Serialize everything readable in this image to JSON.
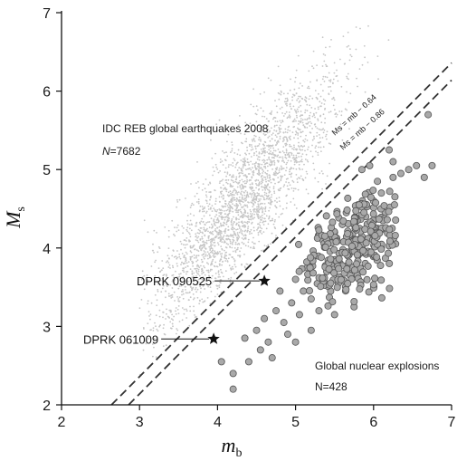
{
  "chart_data": {
    "type": "scatter",
    "xlabel_main": "m",
    "xlabel_sub": "b",
    "ylabel_main": "M",
    "ylabel_sub": "s",
    "xlim": [
      2,
      7
    ],
    "ylim": [
      2,
      7
    ],
    "xticks": [
      "2",
      "3",
      "4",
      "5",
      "6",
      "7"
    ],
    "yticks": [
      "2",
      "3",
      "4",
      "5",
      "6",
      "7"
    ],
    "grid": false,
    "series": [
      {
        "name": "IDC REB global earthquakes 2008",
        "count_label": "N=7682",
        "marker": "small light grey dot",
        "color": "#c6c6c6",
        "cloud": {
          "x_center": 4.3,
          "y_center": 4.55,
          "trend_slope": 1.15,
          "x_range": [
            3.3,
            6.2
          ]
        }
      },
      {
        "name": "Global nuclear explosions",
        "count_label": "N=428",
        "marker": "grey filled circle",
        "color": "#a9a9a9",
        "edge_color": "#555555",
        "points": [
          [
            4.05,
            2.55
          ],
          [
            4.2,
            2.4
          ],
          [
            4.2,
            2.2
          ],
          [
            4.35,
            2.85
          ],
          [
            4.4,
            2.55
          ],
          [
            4.5,
            2.95
          ],
          [
            4.55,
            2.7
          ],
          [
            4.6,
            3.1
          ],
          [
            4.65,
            2.8
          ],
          [
            4.75,
            3.2
          ],
          [
            4.8,
            3.45
          ],
          [
            4.85,
            3.05
          ],
          [
            4.9,
            2.9
          ],
          [
            4.95,
            3.3
          ],
          [
            5.0,
            3.6
          ],
          [
            5.05,
            3.15
          ],
          [
            5.1,
            3.45
          ],
          [
            5.15,
            3.75
          ],
          [
            5.2,
            3.35
          ],
          [
            5.25,
            3.9
          ],
          [
            5.3,
            3.55
          ],
          [
            5.3,
            3.2
          ],
          [
            5.35,
            4.1
          ],
          [
            5.4,
            3.7
          ],
          [
            5.45,
            3.45
          ],
          [
            5.5,
            4.2
          ],
          [
            5.5,
            3.85
          ],
          [
            5.55,
            3.55
          ],
          [
            5.6,
            4.3
          ],
          [
            5.6,
            3.95
          ],
          [
            5.65,
            4.45
          ],
          [
            5.7,
            4.1
          ],
          [
            5.7,
            3.65
          ],
          [
            5.75,
            4.3
          ],
          [
            5.8,
            4.55
          ],
          [
            5.8,
            3.9
          ],
          [
            5.85,
            4.15
          ],
          [
            5.9,
            4.4
          ],
          [
            5.95,
            3.95
          ],
          [
            6.0,
            4.6
          ],
          [
            6.05,
            4.25
          ],
          [
            6.1,
            4.0
          ],
          [
            6.1,
            4.7
          ],
          [
            6.15,
            4.45
          ],
          [
            6.2,
            5.25
          ],
          [
            6.25,
            5.1
          ],
          [
            6.25,
            4.9
          ],
          [
            6.35,
            4.95
          ],
          [
            6.45,
            5.0
          ],
          [
            6.55,
            5.05
          ],
          [
            6.65,
            4.9
          ],
          [
            6.75,
            5.05
          ],
          [
            6.7,
            5.7
          ],
          [
            5.85,
            5.0
          ],
          [
            5.95,
            5.05
          ],
          [
            6.05,
            4.85
          ],
          [
            5.75,
            3.25
          ],
          [
            5.5,
            3.15
          ],
          [
            5.2,
            2.95
          ],
          [
            5.0,
            2.8
          ],
          [
            4.7,
            2.6
          ]
        ]
      }
    ],
    "reference_lines": [
      {
        "label": "M_s = m_b − 0.64",
        "offset": -0.64,
        "dashed": true
      },
      {
        "label": "M_s = m_b − 0.86",
        "offset": -0.86,
        "dashed": true
      }
    ],
    "annotations": [
      {
        "label": "DPRK 090525",
        "x": 4.6,
        "y": 3.58
      },
      {
        "label": "DPRK 061009",
        "x": 3.95,
        "y": 2.84
      }
    ]
  },
  "text": {
    "eq_title": "IDC REB global earthquakes 2008",
    "eq_n": "N",
    "eq_n_value": "=7682",
    "nuc_title": "Global nuclear explosions",
    "nuc_n": "N=428",
    "line1_label": "Ms = mb − 0.64",
    "line2_label": "Ms = mb − 0.86"
  }
}
